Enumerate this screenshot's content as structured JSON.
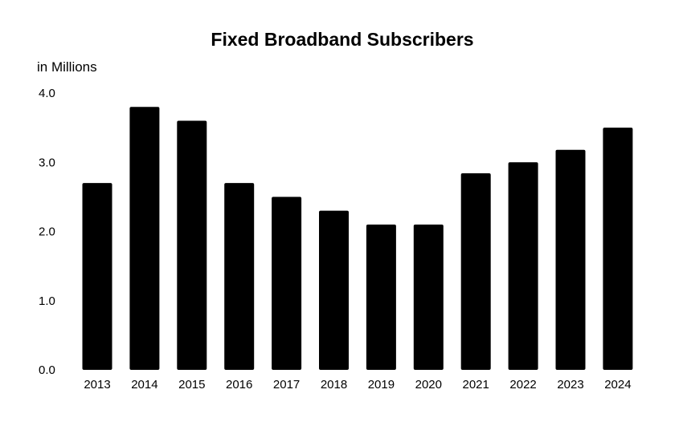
{
  "chart_data": {
    "type": "bar",
    "title": "Fixed Broadband Subscribers",
    "ylabel": "in Millions",
    "xlabel": "",
    "categories": [
      "2013",
      "2014",
      "2015",
      "2016",
      "2017",
      "2018",
      "2019",
      "2020",
      "2021",
      "2022",
      "2023",
      "2024"
    ],
    "values": [
      2.7,
      3.8,
      3.6,
      2.7,
      2.5,
      2.3,
      2.1,
      2.1,
      2.84,
      3.0,
      3.18,
      3.5
    ],
    "ylim": [
      0,
      4
    ],
    "yticks": [
      "0.0",
      "1.0",
      "2.0",
      "3.0",
      "4.0"
    ],
    "grid": false,
    "legend": "none",
    "bar_color": "#000000"
  }
}
